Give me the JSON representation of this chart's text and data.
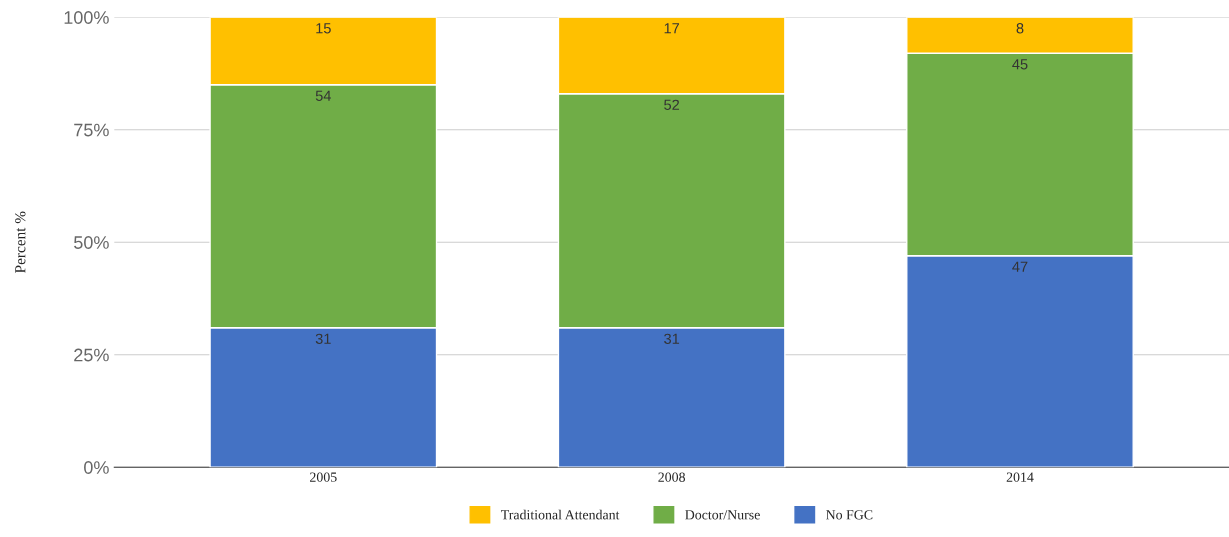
{
  "chart_data": {
    "type": "bar",
    "stacked": true,
    "ylabel": "Percent %",
    "categories": [
      "2005",
      "2008",
      "2014"
    ],
    "series": [
      {
        "name": "No FGC",
        "color": "#4472c4",
        "values": [
          31,
          31,
          47
        ]
      },
      {
        "name": "Doctor/Nurse",
        "color": "#70ad47",
        "values": [
          54,
          52,
          45
        ]
      },
      {
        "name": "Traditional Attendant",
        "color": "#ffc000",
        "values": [
          15,
          17,
          8
        ]
      }
    ],
    "ylim": [
      0,
      100
    ],
    "yticks": [
      {
        "value": 0,
        "label": "0%"
      },
      {
        "value": 25,
        "label": "25%"
      },
      {
        "value": 50,
        "label": "50%"
      },
      {
        "value": 75,
        "label": "75%"
      },
      {
        "value": 100,
        "label": "100%"
      }
    ],
    "grid": "y",
    "legend": "bottom",
    "data_labels": true
  }
}
